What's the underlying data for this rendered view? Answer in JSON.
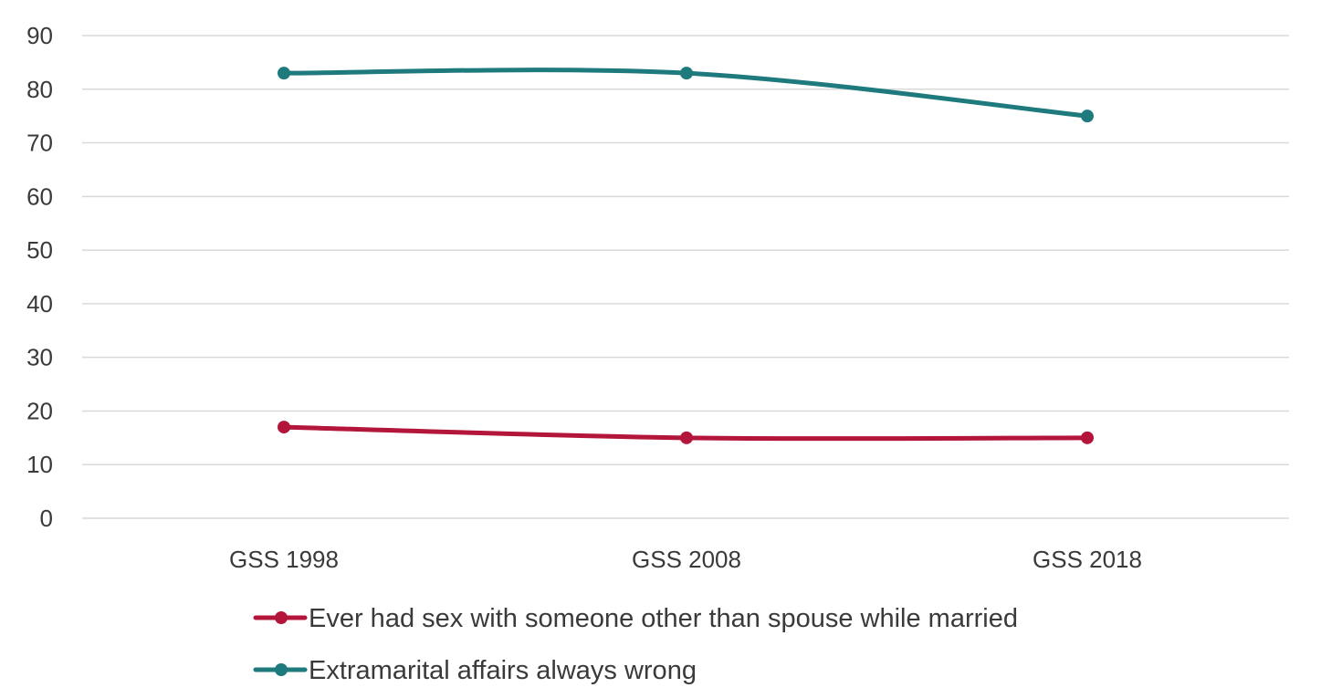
{
  "caption": "",
  "chart_data": {
    "type": "line",
    "title": "",
    "xlabel": "",
    "ylabel": "",
    "categories": [
      "GSS 1998",
      "GSS 2008",
      "GSS 2018"
    ],
    "ylim": [
      0,
      90
    ],
    "yticks": [
      0,
      10,
      20,
      30,
      40,
      50,
      60,
      70,
      80,
      90
    ],
    "grid": true,
    "smoothed": true,
    "legend_position": "bottom",
    "series": [
      {
        "name": "Ever had sex with someone other than spouse while married",
        "color": "#b3163a",
        "values": [
          17,
          15,
          15
        ]
      },
      {
        "name": "Extramarital affairs always wrong",
        "color": "#1f7a7d",
        "values": [
          83,
          83,
          75
        ]
      }
    ]
  }
}
